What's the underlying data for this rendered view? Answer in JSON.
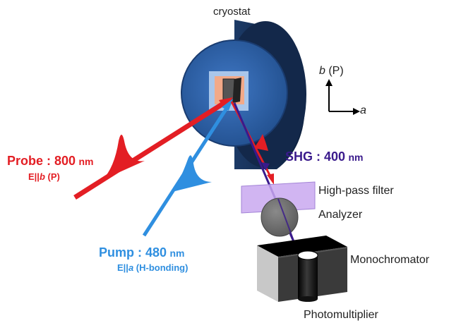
{
  "cryostat_label": "cryostat",
  "axes": {
    "vertical_letter": "b",
    "vertical_suffix": " (P)",
    "horizontal_letter": "a"
  },
  "probe": {
    "name": "Probe : 800",
    "unit": "nm",
    "pol_prefix": "E||",
    "pol_axis": "b",
    "pol_suffix": " (P)"
  },
  "pump": {
    "name": "Pump : 480",
    "unit": "nm",
    "pol_prefix": "E||",
    "pol_axis": "a",
    "pol_suffix": " (H-bonding)"
  },
  "shg": {
    "name": "SHG : 400",
    "unit": "nm"
  },
  "components": {
    "filter": "High-pass filter",
    "analyzer": "Analyzer",
    "monochromator": "Monochromator",
    "photomultiplier": "Photomultiplier"
  },
  "colors": {
    "probe": "#e31e24",
    "pump": "#2f8fe0",
    "shg": "#3a1a8c",
    "cryostat": "#2f5fa8",
    "filter": "#c9a8f0"
  }
}
